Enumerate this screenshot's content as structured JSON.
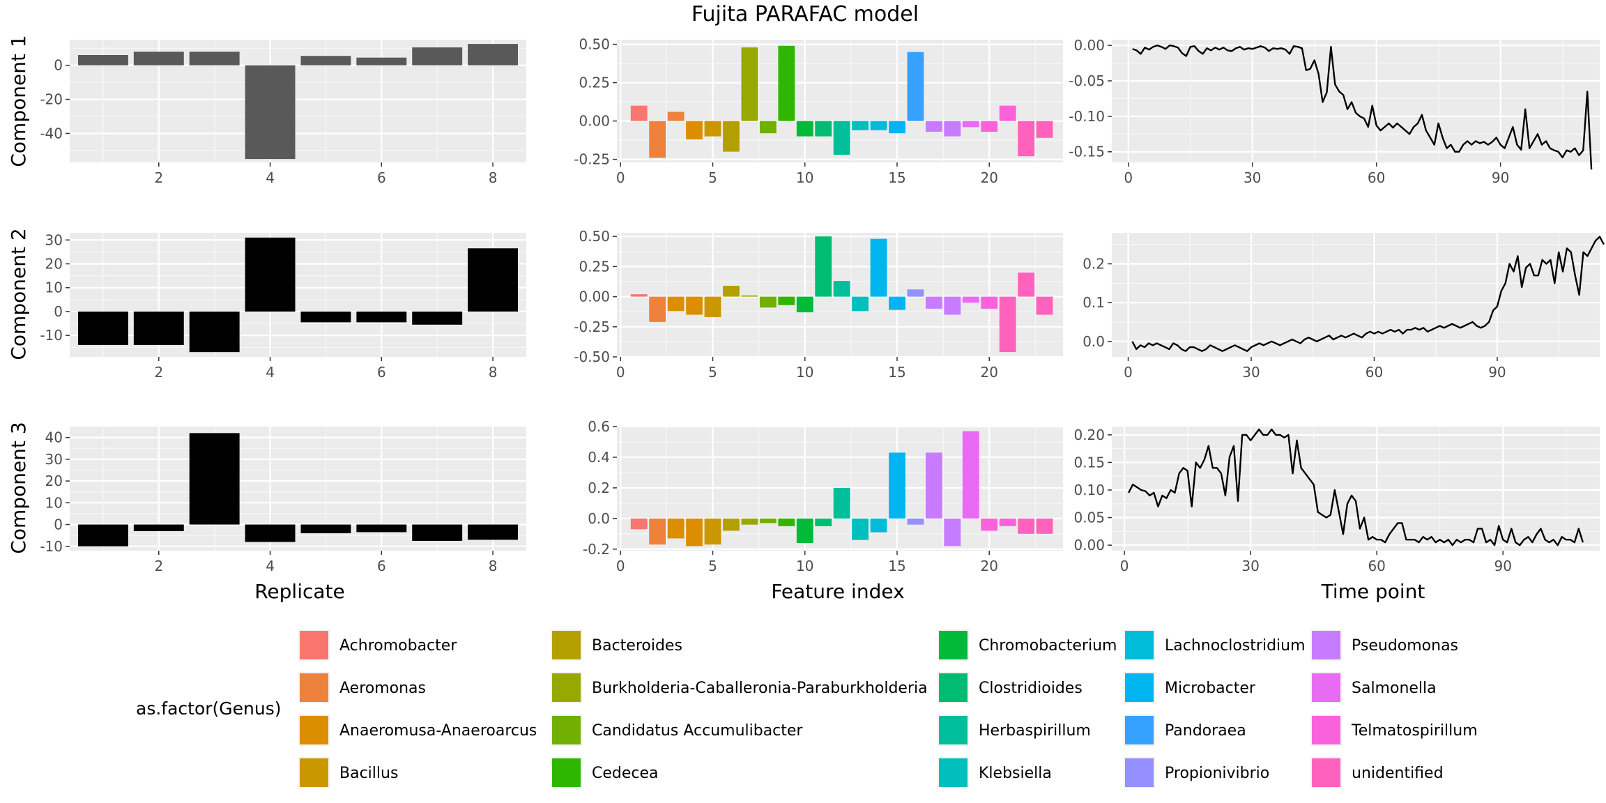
{
  "title": "Fujita PARAFAC model",
  "row_labels": [
    "Component 1",
    "Component 2",
    "Component 3"
  ],
  "column_labels": [
    "Replicate",
    "Feature index",
    "Time point"
  ],
  "legend": {
    "title": "as.factor(Genus)",
    "items": [
      {
        "name": "Achromobacter",
        "color": "#F8766D"
      },
      {
        "name": "Aeromonas",
        "color": "#EC823C"
      },
      {
        "name": "Anaeromusa-Anaeroarcus",
        "color": "#DD8D00"
      },
      {
        "name": "Bacillus",
        "color": "#CA9700"
      },
      {
        "name": "Bacteroides",
        "color": "#B3A000"
      },
      {
        "name": "Burkholderia-Caballeronia-Paraburkholderia",
        "color": "#97A900"
      },
      {
        "name": "Candidatus Accumulibacter",
        "color": "#71B000"
      },
      {
        "name": "Cedecea",
        "color": "#2FB600"
      },
      {
        "name": "Chromobacterium",
        "color": "#00BA38"
      },
      {
        "name": "Clostridioides",
        "color": "#00BC72"
      },
      {
        "name": "Herbaspirillum",
        "color": "#00BE9A"
      },
      {
        "name": "Klebsiella",
        "color": "#00BFBC"
      },
      {
        "name": "Lachnoclostridium",
        "color": "#00BCD9"
      },
      {
        "name": "Microbacter",
        "color": "#00B5F0"
      },
      {
        "name": "Pandoraea",
        "color": "#35A2FF"
      },
      {
        "name": "Propionivibrio",
        "color": "#9590FF"
      },
      {
        "name": "Pseudomonas",
        "color": "#C77CFF"
      },
      {
        "name": "Salmonella",
        "color": "#E76BF3"
      },
      {
        "name": "Telmatospirillum",
        "color": "#FA62DB"
      },
      {
        "name": "unidentified",
        "color": "#FF62BC"
      }
    ]
  },
  "chart_data": [
    {
      "type": "bar",
      "panel": "Component 1 – Replicate",
      "xlabel": "Replicate",
      "x": [
        1,
        2,
        3,
        4,
        5,
        6,
        7,
        8
      ],
      "values": [
        6,
        8,
        8,
        -55,
        5.5,
        4.5,
        10.5,
        12.5
      ],
      "xlim": [
        0.4,
        8.6
      ],
      "ylim": [
        -57,
        15
      ],
      "xticks": [
        2,
        4,
        6,
        8
      ],
      "yticks": [
        -40,
        -20,
        0
      ],
      "bar_color": "#595959"
    },
    {
      "type": "bar",
      "panel": "Component 1 – Feature index",
      "xlabel": "Feature index",
      "x": [
        1,
        2,
        3,
        4,
        5,
        6,
        7,
        8,
        9,
        10,
        11,
        12,
        13,
        14,
        15,
        16,
        17,
        18,
        19,
        20,
        21,
        22,
        23
      ],
      "values": [
        0.1,
        -0.24,
        0.06,
        -0.12,
        -0.1,
        -0.2,
        0.48,
        -0.08,
        0.49,
        -0.1,
        -0.1,
        -0.22,
        -0.06,
        -0.06,
        -0.08,
        0.45,
        -0.07,
        -0.1,
        -0.04,
        -0.07,
        0.1,
        -0.23,
        -0.11
      ],
      "colors": [
        "#F8766D",
        "#EC823C",
        "#EC823C",
        "#DD8D00",
        "#CA9700",
        "#B3A000",
        "#97A900",
        "#71B000",
        "#2FB600",
        "#00BA38",
        "#00BC72",
        "#00BE9A",
        "#00BFBC",
        "#00BCD9",
        "#00B5F0",
        "#35A2FF",
        "#C77CFF",
        "#C77CFF",
        "#E76BF3",
        "#FA62DB",
        "#FA62DB",
        "#FF62BC",
        "#FF62BC"
      ],
      "xlim": [
        -0.2,
        24
      ],
      "ylim": [
        -0.27,
        0.53
      ],
      "xticks": [
        0,
        5,
        10,
        15,
        20
      ],
      "yticks": [
        -0.25,
        0,
        0.25,
        0.5
      ],
      "ytick_labels": [
        "-0.25",
        "0.00",
        "0.25",
        "0.50"
      ]
    },
    {
      "type": "line",
      "panel": "Component 1 – Time point",
      "xlabel": "Time point",
      "x_start": 1,
      "x_step": 1,
      "y": [
        -0.005,
        -0.007,
        -0.012,
        -0.003,
        -0.006,
        -0.002,
        0,
        -0.002,
        -0.005,
        0,
        -0.001,
        -0.003,
        -0.011,
        -0.015,
        -0.002,
        -0.001,
        -0.008,
        -0.012,
        -0.004,
        -0.007,
        -0.003,
        -0.006,
        -0.003,
        -0.007,
        -0.008,
        -0.004,
        -0.002,
        -0.006,
        -0.004,
        -0.005,
        -0.003,
        -0.001,
        -0.003,
        -0.008,
        -0.004,
        -0.005,
        -0.004,
        -0.006,
        -0.012,
        -0.001,
        -0.002,
        -0.004,
        -0.035,
        -0.033,
        -0.021,
        -0.04,
        -0.08,
        -0.066,
        -0.002,
        -0.055,
        -0.065,
        -0.07,
        -0.09,
        -0.08,
        -0.095,
        -0.1,
        -0.103,
        -0.115,
        -0.085,
        -0.113,
        -0.12,
        -0.115,
        -0.11,
        -0.116,
        -0.11,
        -0.115,
        -0.12,
        -0.125,
        -0.115,
        -0.11,
        -0.098,
        -0.12,
        -0.13,
        -0.14,
        -0.11,
        -0.13,
        -0.145,
        -0.14,
        -0.15,
        -0.15,
        -0.14,
        -0.135,
        -0.14,
        -0.135,
        -0.138,
        -0.136,
        -0.14,
        -0.136,
        -0.13,
        -0.14,
        -0.145,
        -0.13,
        -0.115,
        -0.14,
        -0.147,
        -0.09,
        -0.145,
        -0.135,
        -0.125,
        -0.14,
        -0.135,
        -0.145,
        -0.148,
        -0.15,
        -0.158,
        -0.148,
        -0.15,
        -0.145,
        -0.155,
        -0.148,
        -0.065,
        -0.175
      ],
      "xlim": [
        -4,
        114
      ],
      "ylim": [
        -0.165,
        0.008
      ],
      "xticks": [
        0,
        30,
        60,
        90
      ],
      "yticks": [
        -0.15,
        -0.1,
        -0.05,
        0
      ],
      "ytick_labels": [
        "-0.15",
        "-0.10",
        "-0.05",
        "0.00"
      ]
    },
    {
      "type": "bar",
      "panel": "Component 2 – Replicate",
      "xlabel": "Replicate",
      "x": [
        1,
        2,
        3,
        4,
        5,
        6,
        7,
        8
      ],
      "values": [
        -14,
        -14,
        -17,
        31,
        -4.5,
        -4.5,
        -5.5,
        26.5
      ],
      "xlim": [
        0.4,
        8.6
      ],
      "ylim": [
        -19,
        33
      ],
      "xticks": [
        2,
        4,
        6,
        8
      ],
      "yticks": [
        -10,
        0,
        10,
        20,
        30
      ]
    },
    {
      "type": "bar",
      "panel": "Component 2 – Feature index",
      "xlabel": "Feature index",
      "x": [
        1,
        2,
        3,
        4,
        5,
        6,
        7,
        8,
        9,
        10,
        11,
        12,
        13,
        14,
        15,
        16,
        17,
        18,
        19,
        20,
        21,
        22,
        23
      ],
      "values": [
        0.02,
        -0.21,
        -0.12,
        -0.15,
        -0.17,
        0.09,
        0.01,
        -0.09,
        -0.07,
        -0.13,
        0.5,
        0.13,
        -0.12,
        0.48,
        -0.11,
        0.06,
        -0.1,
        -0.15,
        -0.05,
        -0.1,
        -0.46,
        0.2,
        -0.15
      ],
      "colors": [
        "#F8766D",
        "#EC823C",
        "#DD8D00",
        "#DD8D00",
        "#CA9700",
        "#B3A000",
        "#97A900",
        "#71B000",
        "#2FB600",
        "#00BA38",
        "#00BC72",
        "#00BE9A",
        "#00BFBC",
        "#00B5F0",
        "#00B5F0",
        "#9590FF",
        "#C77CFF",
        "#C77CFF",
        "#E76BF3",
        "#FA62DB",
        "#FF62BC",
        "#FF62BC",
        "#FF62BC"
      ],
      "xlim": [
        -0.2,
        24
      ],
      "ylim": [
        -0.5,
        0.53
      ],
      "xticks": [
        0,
        5,
        10,
        15,
        20
      ],
      "yticks": [
        -0.5,
        -0.25,
        0,
        0.25,
        0.5
      ],
      "ytick_labels": [
        "-0.50",
        "-0.25",
        "0.00",
        "0.25",
        "0.50"
      ]
    },
    {
      "type": "line",
      "panel": "Component 2 – Time point",
      "xlabel": "Time point",
      "x_start": 1,
      "x_step": 1,
      "y": [
        0,
        -0.02,
        -0.01,
        -0.015,
        -0.005,
        -0.01,
        -0.005,
        -0.01,
        -0.015,
        -0.02,
        -0.005,
        -0.01,
        -0.02,
        -0.025,
        -0.015,
        -0.015,
        -0.02,
        -0.025,
        -0.02,
        -0.01,
        -0.015,
        -0.02,
        -0.025,
        -0.02,
        -0.015,
        -0.01,
        -0.015,
        -0.02,
        -0.025,
        -0.015,
        -0.01,
        -0.005,
        -0.01,
        -0.005,
        0,
        -0.005,
        -0.01,
        -0.005,
        0,
        0.005,
        0,
        -0.005,
        0.005,
        0.01,
        0.005,
        0,
        0.005,
        0.01,
        0.015,
        0.005,
        0.01,
        0.015,
        0.01,
        0.015,
        0.02,
        0.015,
        0.01,
        0.02,
        0.025,
        0.02,
        0.025,
        0.02,
        0.025,
        0.03,
        0.025,
        0.03,
        0.02,
        0.03,
        0.03,
        0.035,
        0.03,
        0.035,
        0.025,
        0.03,
        0.035,
        0.04,
        0.035,
        0.04,
        0.045,
        0.04,
        0.035,
        0.04,
        0.045,
        0.05,
        0.04,
        0.035,
        0.04,
        0.05,
        0.08,
        0.09,
        0.13,
        0.15,
        0.2,
        0.18,
        0.22,
        0.14,
        0.19,
        0.2,
        0.17,
        0.17,
        0.21,
        0.2,
        0.21,
        0.15,
        0.23,
        0.18,
        0.24,
        0.23,
        0.17,
        0.12,
        0.23,
        0.22,
        0.24,
        0.26,
        0.27,
        0.25
      ],
      "xlim": [
        -4,
        115
      ],
      "ylim": [
        -0.04,
        0.28
      ],
      "xticks": [
        0,
        30,
        60,
        90
      ],
      "yticks": [
        0,
        0.1,
        0.2
      ],
      "ytick_labels": [
        "0.0",
        "0.1",
        "0.2"
      ]
    },
    {
      "type": "bar",
      "panel": "Component 3 – Replicate",
      "xlabel": "Replicate",
      "x": [
        1,
        2,
        3,
        4,
        5,
        6,
        7,
        8
      ],
      "values": [
        -10,
        -3,
        42,
        -8,
        -4,
        -3.5,
        -7.5,
        -7
      ],
      "xlim": [
        0.4,
        8.6
      ],
      "ylim": [
        -12,
        45
      ],
      "xticks": [
        2,
        4,
        6,
        8
      ],
      "yticks": [
        -10,
        0,
        10,
        20,
        30,
        40
      ]
    },
    {
      "type": "bar",
      "panel": "Component 3 – Feature index",
      "xlabel": "Feature index",
      "x": [
        1,
        2,
        3,
        4,
        5,
        6,
        7,
        8,
        9,
        10,
        11,
        12,
        13,
        14,
        15,
        16,
        17,
        18,
        19,
        20,
        21,
        22,
        23
      ],
      "values": [
        -0.07,
        -0.17,
        -0.13,
        -0.18,
        -0.17,
        -0.08,
        -0.04,
        -0.03,
        -0.05,
        -0.16,
        -0.05,
        0.2,
        -0.14,
        -0.09,
        0.43,
        -0.04,
        0.43,
        -0.18,
        0.57,
        -0.08,
        -0.05,
        -0.1,
        -0.1
      ],
      "colors": [
        "#F8766D",
        "#EC823C",
        "#DD8D00",
        "#DD8D00",
        "#CA9700",
        "#B3A000",
        "#97A900",
        "#71B000",
        "#2FB600",
        "#00BA38",
        "#00BC72",
        "#00BE9A",
        "#00BFBC",
        "#00BCD9",
        "#00B5F0",
        "#9590FF",
        "#C77CFF",
        "#C77CFF",
        "#E76BF3",
        "#FA62DB",
        "#FA62DB",
        "#FF62BC",
        "#FF62BC"
      ],
      "xlim": [
        -0.2,
        24
      ],
      "ylim": [
        -0.21,
        0.6
      ],
      "xticks": [
        0,
        5,
        10,
        15,
        20
      ],
      "yticks": [
        -0.2,
        0,
        0.2,
        0.4,
        0.6
      ],
      "ytick_labels": [
        "-0.2",
        "0.0",
        "0.2",
        "0.4",
        "0.6"
      ]
    },
    {
      "type": "line",
      "panel": "Component 3 – Time point",
      "xlabel": "Time point",
      "x_start": 1,
      "x_step": 1,
      "y": [
        0.095,
        0.11,
        0.105,
        0.1,
        0.098,
        0.09,
        0.095,
        0.07,
        0.09,
        0.085,
        0.1,
        0.095,
        0.13,
        0.14,
        0.135,
        0.07,
        0.15,
        0.14,
        0.155,
        0.18,
        0.14,
        0.14,
        0.13,
        0.09,
        0.16,
        0.18,
        0.08,
        0.2,
        0.2,
        0.19,
        0.2,
        0.21,
        0.2,
        0.2,
        0.21,
        0.2,
        0.2,
        0.195,
        0.2,
        0.13,
        0.19,
        0.14,
        0.13,
        0.12,
        0.11,
        0.06,
        0.055,
        0.05,
        0.055,
        0.1,
        0.06,
        0.02,
        0.075,
        0.09,
        0.08,
        0.03,
        0.05,
        0.01,
        0.015,
        0.01,
        0.01,
        0.005,
        0.02,
        0.03,
        0.04,
        0.04,
        0.01,
        0.01,
        0.01,
        0.005,
        0.015,
        0.01,
        0.015,
        0.005,
        0.01,
        0.005,
        0.01,
        0,
        0.01,
        0.005,
        0.01,
        0.01,
        0.005,
        0.03,
        0.03,
        0.005,
        0.01,
        0,
        0.035,
        0.01,
        0.005,
        0.03,
        0.005,
        0,
        0.01,
        0.015,
        0.005,
        0.02,
        0.03,
        0.01,
        0.005,
        0.01,
        0,
        0.015,
        0.01,
        0.01,
        0.005,
        0.03,
        0.005
      ],
      "xlim": [
        -3,
        113
      ],
      "ylim": [
        -0.01,
        0.215
      ],
      "xticks": [
        0,
        30,
        60,
        90
      ],
      "yticks": [
        0,
        0.05,
        0.1,
        0.15,
        0.2
      ],
      "ytick_labels": [
        "0.00",
        "0.05",
        "0.10",
        "0.15",
        "0.20"
      ]
    }
  ]
}
